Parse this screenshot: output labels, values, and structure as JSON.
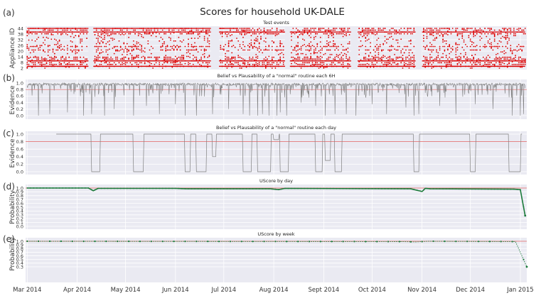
{
  "title": "Scores for household UK-DALE",
  "x_ticks": [
    "Mar 2014",
    "Apr 2014",
    "May 2014",
    "Jun 2014",
    "Jul 2014",
    "Aug 2014",
    "Sept 2014",
    "Oct 2014",
    "Nov 2014",
    "Dec 2014",
    "Jan 2015"
  ],
  "colors": {
    "events": "#dd0000",
    "evidence": "#808080",
    "threshold": "#e06060",
    "uscore": "#1b7a3a",
    "panel_bg": "#eaeaf2",
    "grid": "#ffffff"
  },
  "chart_data": [
    {
      "id": "a",
      "panel_label": "(a)",
      "type": "scatter",
      "title": "Test events",
      "ylabel": "Appliance ID",
      "yticks": [
        "2",
        "8",
        "14",
        "20",
        "26",
        "32",
        "38",
        "44"
      ],
      "xrange": [
        "2014-03-01",
        "2015-01-05"
      ],
      "ylim": [
        0,
        44
      ],
      "gaps": [
        [
          "2014-04-08",
          "2014-04-11"
        ],
        [
          "2014-06-23",
          "2014-06-28"
        ],
        [
          "2014-08-08",
          "2014-08-11"
        ],
        [
          "2014-09-18",
          "2014-09-22"
        ],
        [
          "2014-10-28",
          "2014-11-01"
        ]
      ],
      "grid": true
    },
    {
      "id": "b",
      "panel_label": "(b)",
      "type": "line",
      "title": "Belief vs Plausability of a \"normal\" routine each 6H",
      "ylabel": "Evidence",
      "yticks": [
        "0.0",
        "0.2",
        "0.4",
        "0.6",
        "0.8",
        "1.0"
      ],
      "ylim": [
        0,
        1
      ],
      "threshold": 0.8,
      "dips": [
        [
          "2014-03-08",
          0.0
        ],
        [
          "2014-03-15",
          0.05
        ],
        [
          "2014-03-26",
          0.1
        ],
        [
          "2014-04-05",
          0.0
        ],
        [
          "2014-04-10",
          0.05
        ],
        [
          "2014-04-18",
          0.0
        ],
        [
          "2014-04-24",
          0.2
        ],
        [
          "2014-05-06",
          0.0
        ],
        [
          "2014-05-14",
          0.3
        ],
        [
          "2014-05-22",
          0.05
        ],
        [
          "2014-06-01",
          0.35
        ],
        [
          "2014-06-07",
          0.0
        ],
        [
          "2014-06-14",
          0.0
        ],
        [
          "2014-06-24",
          0.05
        ],
        [
          "2014-07-04",
          0.2
        ],
        [
          "2014-07-13",
          0.05
        ],
        [
          "2014-07-17",
          0.0
        ],
        [
          "2014-07-22",
          0.0
        ],
        [
          "2014-07-25",
          0.05
        ],
        [
          "2014-07-29",
          0.0
        ],
        [
          "2014-08-03",
          0.0
        ],
        [
          "2014-08-05",
          0.1
        ],
        [
          "2014-08-09",
          0.0
        ],
        [
          "2014-08-18",
          0.4
        ],
        [
          "2014-08-27",
          0.3
        ],
        [
          "2014-09-02",
          0.0
        ],
        [
          "2014-09-08",
          0.05
        ],
        [
          "2014-09-15",
          0.05
        ],
        [
          "2014-09-21",
          0.0
        ],
        [
          "2014-10-01",
          0.35
        ],
        [
          "2014-10-10",
          0.05
        ],
        [
          "2014-10-22",
          0.25
        ],
        [
          "2014-10-27",
          0.0
        ],
        [
          "2014-10-30",
          0.05
        ],
        [
          "2014-11-12",
          0.3
        ],
        [
          "2014-11-22",
          0.05
        ],
        [
          "2014-12-04",
          0.35
        ],
        [
          "2014-12-15",
          0.2
        ],
        [
          "2014-12-27",
          0.0
        ],
        [
          "2015-01-01",
          0.0
        ],
        [
          "2015-01-03",
          0.05
        ]
      ],
      "grid": true
    },
    {
      "id": "c",
      "panel_label": "(c)",
      "type": "line",
      "title": "Belief vs Plausability of a \"normal\" routine each day",
      "ylabel": "Evidence",
      "yticks": [
        "0.0",
        "0.2",
        "0.4",
        "0.6",
        "0.8",
        "1.0"
      ],
      "ylim": [
        0,
        1
      ],
      "threshold": 0.8,
      "start": "2014-03-19",
      "end": "2015-01-02",
      "low_segments": [
        [
          "2014-04-10",
          "2014-04-15",
          0.0
        ],
        [
          "2014-05-06",
          "2014-05-12",
          0.0
        ],
        [
          "2014-06-07",
          "2014-06-10",
          0.0
        ],
        [
          "2014-06-14",
          "2014-06-20",
          0.0
        ],
        [
          "2014-06-24",
          "2014-06-26",
          0.4
        ],
        [
          "2014-07-13",
          "2014-07-18",
          0.0
        ],
        [
          "2014-07-22",
          "2014-07-30",
          0.0
        ],
        [
          "2014-08-01",
          "2014-08-04",
          0.85
        ],
        [
          "2014-08-05",
          "2014-08-10",
          0.0
        ],
        [
          "2014-08-27",
          "2014-08-31",
          0.0
        ],
        [
          "2014-09-02",
          "2014-09-05",
          0.3
        ],
        [
          "2014-09-08",
          "2014-09-12",
          0.0
        ],
        [
          "2014-10-27",
          "2014-10-30",
          0.0
        ],
        [
          "2014-12-01",
          "2014-12-04",
          0.0
        ],
        [
          "2014-12-25",
          "2015-01-01",
          0.0
        ]
      ],
      "grid": true
    },
    {
      "id": "d",
      "panel_label": "(d)",
      "type": "line",
      "title": "UScore by day",
      "ylabel": "Probability",
      "yticks": [
        "0.0",
        "0.1",
        "0.2",
        "0.3",
        "0.4",
        "0.5",
        "0.6",
        "0.7",
        "0.8",
        "0.9",
        "1.0"
      ],
      "ylim": [
        0,
        1
      ],
      "threshold": 1.0,
      "x": [
        "2014-03-01",
        "2014-04-08",
        "2014-04-11",
        "2014-04-14",
        "2014-06-01",
        "2014-06-08",
        "2014-07-30",
        "2014-08-04",
        "2014-08-08",
        "2014-10-25",
        "2014-11-01",
        "2014-11-03",
        "2014-11-06",
        "2014-12-28",
        "2015-01-01",
        "2015-01-04"
      ],
      "values": [
        1.0,
        1.0,
        0.93,
        0.99,
        0.99,
        0.98,
        0.98,
        0.96,
        0.99,
        0.98,
        0.91,
        0.99,
        0.98,
        0.97,
        0.96,
        0.28
      ],
      "grid": true
    },
    {
      "id": "e",
      "panel_label": "(e)",
      "type": "line",
      "title": "UScore by week",
      "ylabel": "Probability",
      "yticks": [
        "0.3",
        "0.4",
        "0.5",
        "0.6",
        "0.7",
        "0.8",
        "0.9",
        "1.0"
      ],
      "ylim": [
        0.28,
        1.0
      ],
      "threshold": 1.0,
      "x": [
        "2014-03-01",
        "2014-10-20",
        "2014-10-28",
        "2014-11-05",
        "2014-12-29",
        "2015-01-05"
      ],
      "values": [
        1.0,
        0.99,
        0.98,
        1.0,
        0.99,
        0.3
      ],
      "grid": true
    }
  ]
}
